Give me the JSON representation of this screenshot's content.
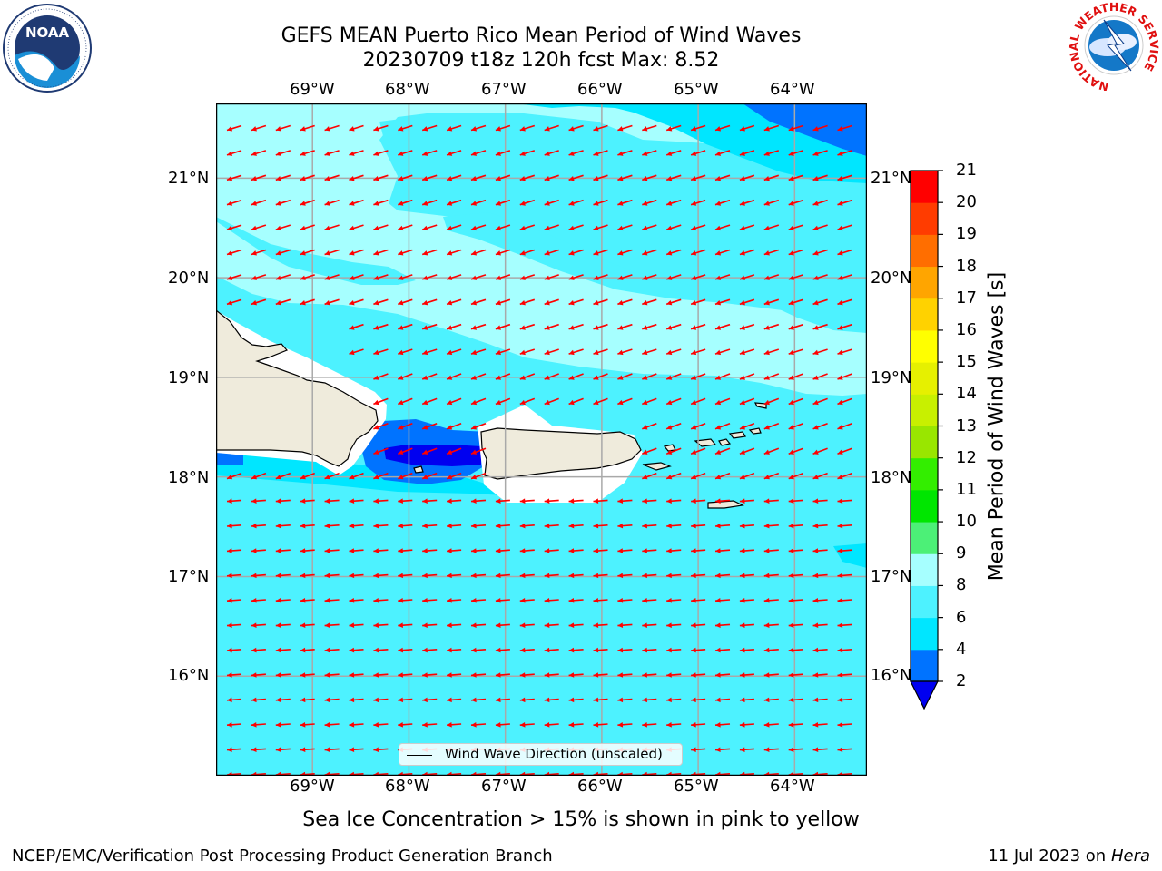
{
  "title": {
    "line1": "GEFS MEAN Puerto Rico Mean Period of Wind Waves",
    "line2": "20230709 t18z 120h fcst   Max: 8.52"
  },
  "logos": {
    "left": {
      "name": "noaa-logo",
      "text": "NOAA"
    },
    "right": {
      "name": "nws-logo",
      "ring_text": "NATIONAL WEATHER SERVICE"
    }
  },
  "map": {
    "lon_labels": [
      "69°W",
      "68°W",
      "67°W",
      "66°W",
      "65°W",
      "64°W"
    ],
    "lat_labels": [
      "21°N",
      "20°N",
      "19°N",
      "18°N",
      "17°N",
      "16°N"
    ],
    "lon_range": [
      -70,
      -63.25
    ],
    "lat_range": [
      15.0,
      21.75
    ],
    "land_color": "#efebdc",
    "arrow_color": "#ff0000",
    "arrow_direction": "from east (pointing west-southwest)"
  },
  "legend": {
    "label": "Wind Wave Direction (unscaled)"
  },
  "colorbar": {
    "title": "Mean Period of Wind Waves [s]",
    "ticks": [
      "2",
      "4",
      "6",
      "8",
      "9",
      "10",
      "11",
      "12",
      "13",
      "14",
      "15",
      "16",
      "17",
      "18",
      "19",
      "20",
      "21"
    ],
    "colors": [
      "#0000f0",
      "#0073ff",
      "#00e6ff",
      "#4df2ff",
      "#a6ffff",
      "#4cf077",
      "#00e600",
      "#33ee00",
      "#99e600",
      "#c8f000",
      "#e6f000",
      "#ffff00",
      "#ffd200",
      "#ffa500",
      "#ff6e00",
      "#ff3c00",
      "#ff0000"
    ]
  },
  "footer": {
    "note": "Sea Ice Concentration > 15% is shown in pink to yellow",
    "credit": "NCEP/EMC/Verification Post Processing Product Generation Branch",
    "date_prefix": "11 Jul 2023 on ",
    "host": "Hera"
  }
}
